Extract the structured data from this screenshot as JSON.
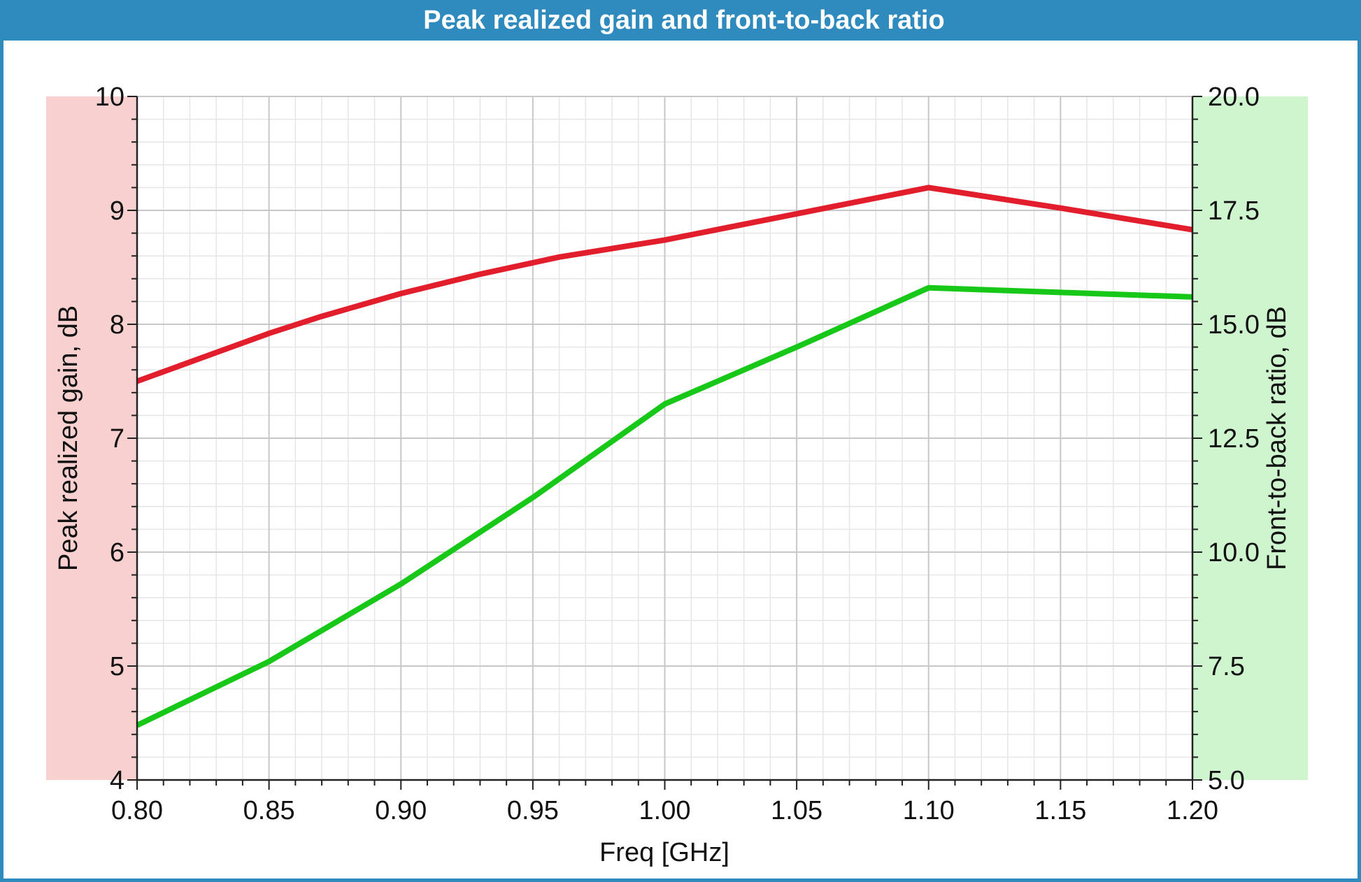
{
  "window": {
    "title": "Peak realized gain and front-to-back ratio"
  },
  "colors": {
    "title_bar": "#2f8bbd",
    "gain_band": "#f8d0d0",
    "ftb_band": "#cff5cf",
    "gain_line": "#e21e2c",
    "ftb_line": "#18c818",
    "grid_major": "#c8c8c8",
    "grid_minor": "#e6e6e6"
  },
  "chart_data": {
    "type": "line",
    "title": "Peak realized gain and front-to-back ratio",
    "xlabel": "Freq [GHz]",
    "ylabel_left": "Peak realized gain, dB",
    "ylabel_right": "Front-to-back ratio, dB",
    "xlim": [
      0.8,
      1.2
    ],
    "ylim_left": [
      4,
      10
    ],
    "ylim_right": [
      5.0,
      20.0
    ],
    "x_ticks": [
      "0.80",
      "0.85",
      "0.90",
      "0.95",
      "1.00",
      "1.05",
      "1.10",
      "1.15",
      "1.20"
    ],
    "y_left_ticks": [
      "4",
      "5",
      "6",
      "7",
      "8",
      "9",
      "10"
    ],
    "y_right_ticks": [
      "5.0",
      "7.5",
      "10.0",
      "12.5",
      "15.0",
      "17.5",
      "20.0"
    ],
    "grid": true,
    "series": [
      {
        "axis": "left",
        "color": "#e21e2c",
        "x": [
          0.8,
          0.85,
          0.87,
          0.9,
          0.93,
          0.96,
          1.0,
          1.05,
          1.1,
          1.15,
          1.2
        ],
        "values": [
          7.5,
          7.92,
          8.07,
          8.27,
          8.44,
          8.59,
          8.74,
          8.97,
          9.2,
          9.02,
          8.83
        ]
      },
      {
        "axis": "right",
        "color": "#18c818",
        "x": [
          0.8,
          0.85,
          0.9,
          0.95,
          1.0,
          1.05,
          1.1,
          1.15,
          1.2
        ],
        "values": [
          6.2,
          7.6,
          9.3,
          11.2,
          13.25,
          14.5,
          15.8,
          15.7,
          15.6
        ]
      }
    ]
  }
}
